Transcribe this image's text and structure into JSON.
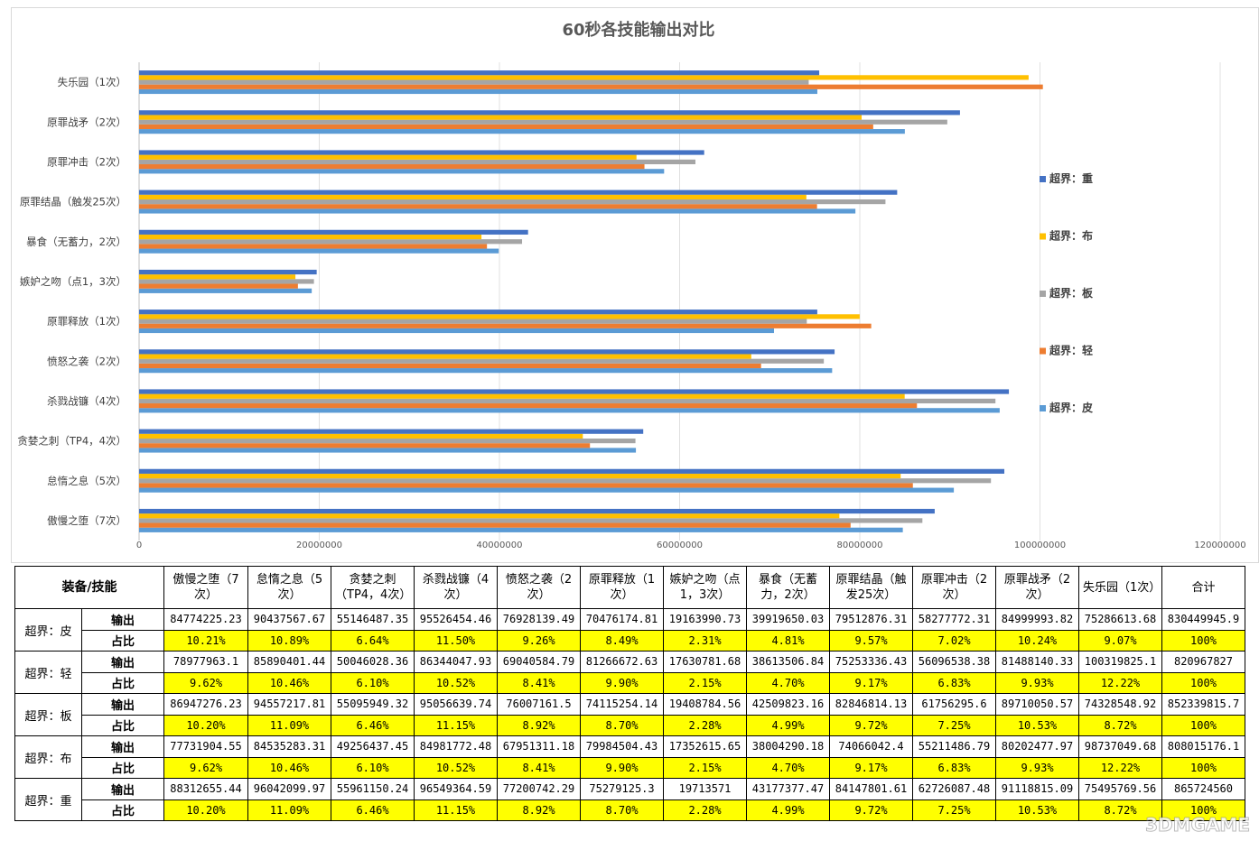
{
  "chart_data": {
    "type": "bar",
    "orientation": "horizontal",
    "title": "60秒各技能输出对比",
    "categories": [
      "傲慢之堕（7次）",
      "怠惰之息（5次）",
      "贪婪之刺（TP4，4次）",
      "杀戮战镰（4次）",
      "愤怒之袭（2次）",
      "原罪释放（1次）",
      "嫉妒之吻（点1，3次）",
      "暴食（无蓄力，2次）",
      "原罪结晶（触发25次）",
      "原罪冲击（2次）",
      "原罪战矛（2次）",
      "失乐园（1次）"
    ],
    "xlim": [
      0,
      120000000
    ],
    "xticks": [
      "0",
      "20000000",
      "40000000",
      "60000000",
      "80000000",
      "100000000",
      "120000000"
    ],
    "grid": "vertical",
    "legend_position": "right",
    "series": [
      {
        "name": "超界：皮",
        "color": "#5b9bd5",
        "values": [
          84774225.23,
          90437567.67,
          55146487.35,
          95526454.46,
          76928139.49,
          70476174.81,
          19163990.73,
          39919650.03,
          79512876.31,
          58277772.31,
          84999993.82,
          75286613.68
        ]
      },
      {
        "name": "超界：轻",
        "color": "#ed7d31",
        "values": [
          78977963.1,
          85890401.44,
          50046028.36,
          86344047.93,
          69040584.79,
          81266672.63,
          17630781.68,
          38613506.84,
          75253336.43,
          56096538.38,
          81488140.33,
          100319825.1
        ]
      },
      {
        "name": "超界：板",
        "color": "#a5a5a5",
        "values": [
          86947276.23,
          94557217.81,
          55095949.32,
          95056639.74,
          76007161.5,
          74115254.14,
          19408784.56,
          42509823.16,
          82846814.13,
          61756295.6,
          89710050.57,
          74328548.92
        ]
      },
      {
        "name": "超界：布",
        "color": "#ffc000",
        "values": [
          77731904.55,
          84535283.31,
          49256437.45,
          84981772.48,
          67951311.18,
          79984504.43,
          17352615.65,
          38004290.18,
          74066042.4,
          55211486.79,
          80202477.97,
          98737049.68
        ]
      },
      {
        "name": "超界：重",
        "color": "#4472c4",
        "values": [
          88312655.44,
          96042099.97,
          55961150.24,
          96549364.59,
          77200742.29,
          75279125.3,
          19713571,
          43177377.47,
          84147801.61,
          62726087.48,
          91118815.09,
          75495769.56
        ]
      }
    ]
  },
  "table": {
    "corner": "装备/技能",
    "headers": [
      "傲慢之堕（7次）",
      "怠惰之息（5次）",
      "贪婪之刺（TP4，4次）",
      "杀戮战镰（4次）",
      "愤怒之袭（2次）",
      "原罪释放（1次）",
      "嫉妒之吻（点1，3次）",
      "暴食（无蓄力，2次）",
      "原罪结晶（触发25次）",
      "原罪冲击（2次）",
      "原罪战矛（2次）",
      "失乐园（1次）",
      "合计"
    ],
    "output_label": "输出",
    "share_label": "占比",
    "groups": [
      {
        "name": "超界：皮",
        "output": [
          "84774225.23",
          "90437567.67",
          "55146487.35",
          "95526454.46",
          "76928139.49",
          "70476174.81",
          "19163990.73",
          "39919650.03",
          "79512876.31",
          "58277772.31",
          "84999993.82",
          "75286613.68",
          "830449945.9"
        ],
        "share": [
          "10.21%",
          "10.89%",
          "6.64%",
          "11.50%",
          "9.26%",
          "8.49%",
          "2.31%",
          "4.81%",
          "9.57%",
          "7.02%",
          "10.24%",
          "9.07%",
          "100%"
        ]
      },
      {
        "name": "超界：轻",
        "output": [
          "78977963.1",
          "85890401.44",
          "50046028.36",
          "86344047.93",
          "69040584.79",
          "81266672.63",
          "17630781.68",
          "38613506.84",
          "75253336.43",
          "56096538.38",
          "81488140.33",
          "100319825.1",
          "820967827"
        ],
        "share": [
          "9.62%",
          "10.46%",
          "6.10%",
          "10.52%",
          "8.41%",
          "9.90%",
          "2.15%",
          "4.70%",
          "9.17%",
          "6.83%",
          "9.93%",
          "12.22%",
          "100%"
        ]
      },
      {
        "name": "超界：板",
        "output": [
          "86947276.23",
          "94557217.81",
          "55095949.32",
          "95056639.74",
          "76007161.5",
          "74115254.14",
          "19408784.56",
          "42509823.16",
          "82846814.13",
          "61756295.6",
          "89710050.57",
          "74328548.92",
          "852339815.7"
        ],
        "share": [
          "10.20%",
          "11.09%",
          "6.46%",
          "11.15%",
          "8.92%",
          "8.70%",
          "2.28%",
          "4.99%",
          "9.72%",
          "7.25%",
          "10.53%",
          "8.72%",
          "100%"
        ]
      },
      {
        "name": "超界：布",
        "output": [
          "77731904.55",
          "84535283.31",
          "49256437.45",
          "84981772.48",
          "67951311.18",
          "79984504.43",
          "17352615.65",
          "38004290.18",
          "74066042.4",
          "55211486.79",
          "80202477.97",
          "98737049.68",
          "808015176.1"
        ],
        "share": [
          "9.62%",
          "10.46%",
          "6.10%",
          "10.52%",
          "8.41%",
          "9.90%",
          "2.15%",
          "4.70%",
          "9.17%",
          "6.83%",
          "9.93%",
          "12.22%",
          "100%"
        ]
      },
      {
        "name": "超界：重",
        "output": [
          "88312655.44",
          "96042099.97",
          "55961150.24",
          "96549364.59",
          "77200742.29",
          "75279125.3",
          "19713571",
          "43177377.47",
          "84147801.61",
          "62726087.48",
          "91118815.09",
          "75495769.56",
          "865724560"
        ],
        "share": [
          "10.20%",
          "11.09%",
          "6.46%",
          "11.15%",
          "8.92%",
          "8.70%",
          "2.28%",
          "4.99%",
          "9.72%",
          "7.25%",
          "10.53%",
          "8.72%",
          "100%"
        ]
      }
    ]
  },
  "watermark": "3DMGAME"
}
